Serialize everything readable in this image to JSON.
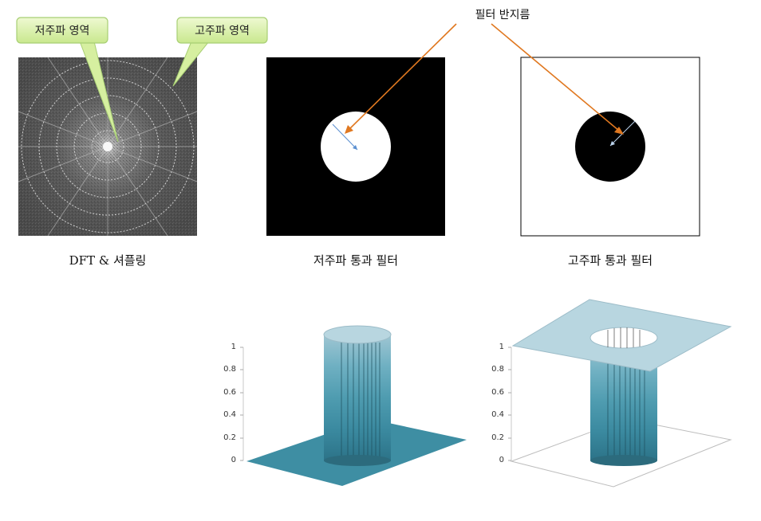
{
  "callouts": {
    "low_freq": "저주파 영역",
    "high_freq": "고주파 영역",
    "filter_radius": "필터 반지름"
  },
  "captions": {
    "dft": "DFT & 셔플링",
    "lowpass": "저주파 통과 필터",
    "highpass": "고주파 통과 필터"
  },
  "surface_axis_ticks": [
    "0",
    "0.2",
    "0.4",
    "0.6",
    "0.8",
    "1"
  ],
  "colors": {
    "callout_fill": "#d9f0a8",
    "callout_border": "#9cc86a",
    "arrow": "#e07820",
    "surface_top": "#b8d6e0",
    "surface_base": "#3d8ea3"
  }
}
